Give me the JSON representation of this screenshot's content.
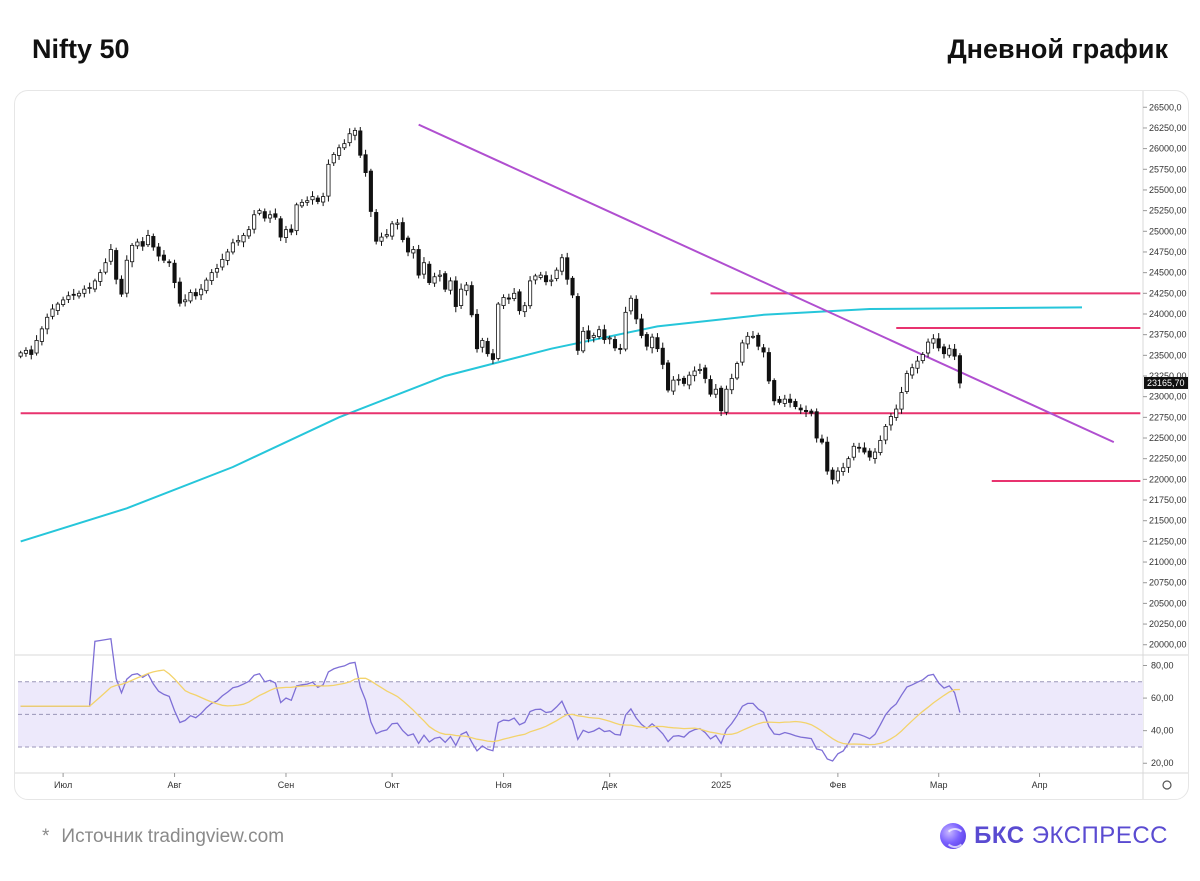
{
  "header": {
    "title_left": "Nifty 50",
    "title_right": "Дневной график"
  },
  "footer": {
    "star": "*",
    "source": "Источник tradingview.com",
    "brand_bold": "БКС",
    "brand_rest": "ЭКСПРЕСС"
  },
  "colors": {
    "sma": "#26c6da",
    "trendline": "#b04fd0",
    "levels": "#e8336f",
    "rsi": "#7e6fd6",
    "rsi_ma": "#f3d36b",
    "rsi_band": "#ede9fb",
    "candle_up": "#ffffff",
    "candle_down": "#111111"
  },
  "chart_data": {
    "type": "candlestick",
    "instrument": "Nifty 50",
    "price_ticks": [
      "26500,0",
      "26250,00",
      "26000,00",
      "25750,00",
      "25500,00",
      "25250,00",
      "25000,00",
      "24750,00",
      "24500,00",
      "24250,00",
      "24000,00",
      "23750,00",
      "23500,00",
      "23250,00",
      "23000,00",
      "22750,00",
      "22500,00",
      "22250,00",
      "22000,00",
      "21750,00",
      "21500,00",
      "21250,00",
      "21000,00",
      "20750,00",
      "20500,00",
      "20250,00",
      "20000,00"
    ],
    "price_range": [
      19900,
      26600
    ],
    "last_price_label": "23165,70",
    "x_ticks": [
      {
        "label": "Июл",
        "idx": 8
      },
      {
        "label": "Авг",
        "idx": 29
      },
      {
        "label": "Сен",
        "idx": 50
      },
      {
        "label": "Окт",
        "idx": 70
      },
      {
        "label": "Ноя",
        "idx": 91
      },
      {
        "label": "Дек",
        "idx": 111
      },
      {
        "label": "2025",
        "idx": 132
      },
      {
        "label": "Фев",
        "idx": 154
      },
      {
        "label": "Мар",
        "idx": 173
      },
      {
        "label": "Апр",
        "idx": 192
      }
    ],
    "closes": [
      23530,
      23560,
      23510,
      23680,
      23820,
      23960,
      24060,
      24120,
      24170,
      24220,
      24230,
      24250,
      24300,
      24320,
      24400,
      24500,
      24620,
      24780,
      24420,
      24240,
      24650,
      24830,
      24870,
      24820,
      24950,
      24810,
      24700,
      24650,
      24620,
      24380,
      24130,
      24170,
      24260,
      24220,
      24300,
      24410,
      24500,
      24550,
      24660,
      24750,
      24860,
      24890,
      24950,
      25020,
      25200,
      25250,
      25160,
      25200,
      25170,
      24930,
      25020,
      24990,
      25320,
      25350,
      25370,
      25420,
      25360,
      25420,
      25810,
      25930,
      26010,
      26060,
      26180,
      26220,
      25920,
      25710,
      25240,
      24880,
      24930,
      24960,
      25090,
      25100,
      24900,
      24750,
      24780,
      24470,
      24620,
      24380,
      24450,
      24470,
      24300,
      24400,
      24090,
      24300,
      24350,
      23990,
      23580,
      23680,
      23520,
      23450,
      24120,
      24200,
      24180,
      24250,
      24040,
      24100,
      24400,
      24460,
      24470,
      24390,
      24410,
      24530,
      24680,
      24420,
      24230,
      23560,
      23790,
      23700,
      23740,
      23810,
      23690,
      23710,
      23590,
      23570,
      24020,
      24190,
      23940,
      23740,
      23610,
      23720,
      23580,
      23390,
      23080,
      23200,
      23210,
      23160,
      23260,
      23310,
      23330,
      23220,
      23030,
      23090,
      22830,
      23090,
      23220,
      23400,
      23650,
      23730,
      23730,
      23610,
      23540,
      23190,
      22950,
      22930,
      22970,
      22930,
      22880,
      22840,
      22820,
      22800,
      22500,
      22450,
      22100,
      22000,
      22100,
      22140,
      22250,
      22400,
      22380,
      22330,
      22270,
      22330,
      22470,
      22640,
      22760,
      22850,
      23050,
      23280,
      23350,
      23430,
      23510,
      23660,
      23700,
      23590,
      23520,
      23580,
      23490,
      23165
    ],
    "sma200": [
      {
        "idx": 0,
        "value": 21250
      },
      {
        "idx": 20,
        "value": 21650
      },
      {
        "idx": 40,
        "value": 22150
      },
      {
        "idx": 60,
        "value": 22750
      },
      {
        "idx": 80,
        "value": 23250
      },
      {
        "idx": 100,
        "value": 23580
      },
      {
        "idx": 120,
        "value": 23850
      },
      {
        "idx": 140,
        "value": 23990
      },
      {
        "idx": 160,
        "value": 24060
      },
      {
        "idx": 180,
        "value": 24070
      },
      {
        "idx": 200,
        "value": 24080
      }
    ],
    "trendline": {
      "from": {
        "idx": 75,
        "value": 26290
      },
      "to": {
        "idx": 206,
        "value": 22450
      }
    },
    "levels": [
      {
        "from_idx": 0,
        "to_idx": 211,
        "value": 22800
      },
      {
        "from_idx": 130,
        "to_idx": 211,
        "value": 24250
      },
      {
        "from_idx": 165,
        "to_idx": 211,
        "value": 23830
      },
      {
        "from_idx": 183,
        "to_idx": 211,
        "value": 21980
      }
    ],
    "rsi": {
      "ticks": [
        "80,00",
        "60,00",
        "40,00",
        "20,00"
      ],
      "range": [
        14,
        84
      ],
      "band": [
        30,
        70
      ],
      "mid": 50
    }
  }
}
